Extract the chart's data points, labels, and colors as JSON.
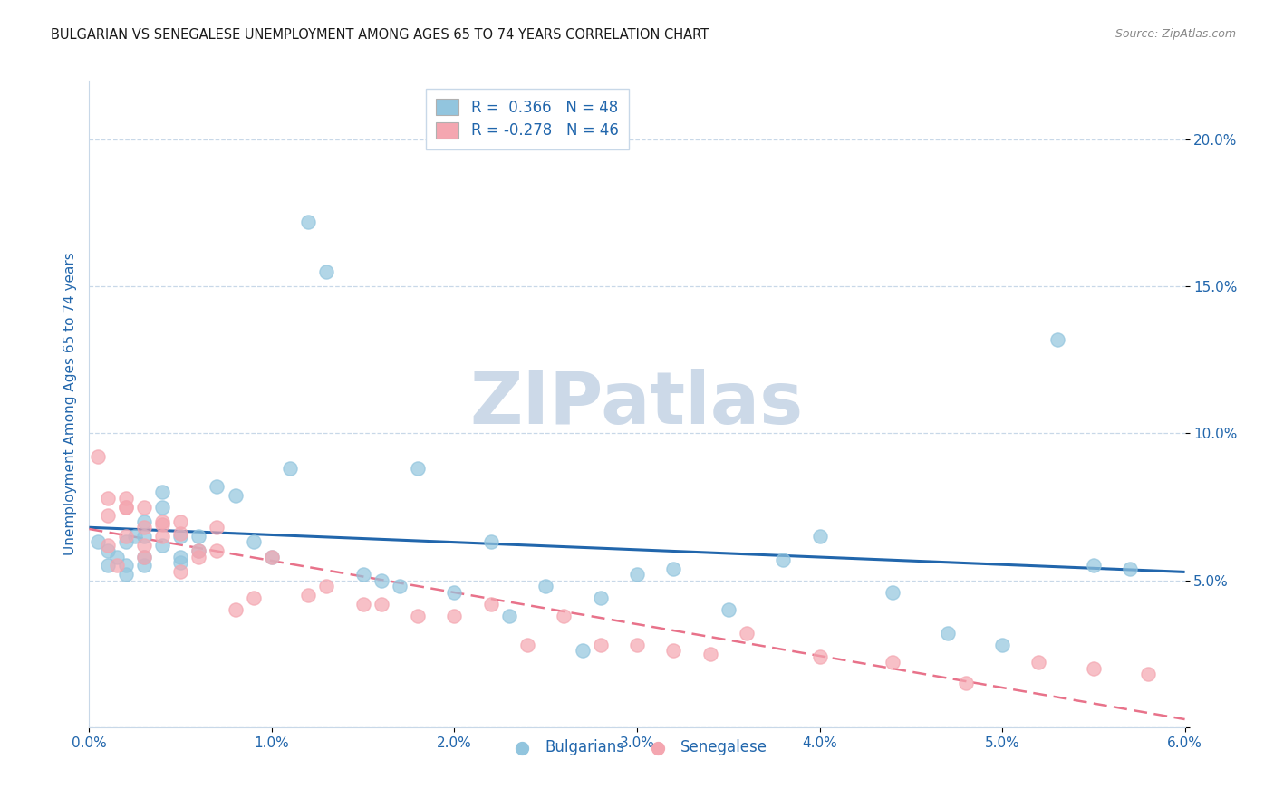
{
  "title": "BULGARIAN VS SENEGALESE UNEMPLOYMENT AMONG AGES 65 TO 74 YEARS CORRELATION CHART",
  "source": "Source: ZipAtlas.com",
  "ylabel": "Unemployment Among Ages 65 to 74 years",
  "xlim": [
    0.0,
    0.06
  ],
  "ylim": [
    0.0,
    0.22
  ],
  "x_ticks": [
    0.0,
    0.01,
    0.02,
    0.03,
    0.04,
    0.05,
    0.06
  ],
  "x_tick_labels": [
    "0.0%",
    "1.0%",
    "2.0%",
    "3.0%",
    "4.0%",
    "5.0%",
    "6.0%"
  ],
  "y_ticks": [
    0.0,
    0.05,
    0.1,
    0.15,
    0.2
  ],
  "y_tick_labels": [
    "",
    "5.0%",
    "10.0%",
    "15.0%",
    "20.0%"
  ],
  "legend_r1": "R =  0.366   N = 48",
  "legend_r2": "R = -0.278   N = 46",
  "blue_color": "#92c5de",
  "pink_color": "#f4a6b0",
  "blue_line_color": "#2166ac",
  "pink_line_color": "#e8728a",
  "blue_line_solid": true,
  "pink_line_dashed": true,
  "bulgarians_x": [
    0.0005,
    0.001,
    0.001,
    0.0015,
    0.002,
    0.002,
    0.002,
    0.0025,
    0.003,
    0.003,
    0.003,
    0.003,
    0.004,
    0.004,
    0.004,
    0.005,
    0.005,
    0.005,
    0.006,
    0.006,
    0.007,
    0.008,
    0.009,
    0.01,
    0.011,
    0.012,
    0.013,
    0.015,
    0.016,
    0.017,
    0.018,
    0.02,
    0.022,
    0.023,
    0.025,
    0.027,
    0.028,
    0.03,
    0.032,
    0.035,
    0.038,
    0.04,
    0.044,
    0.047,
    0.05,
    0.053,
    0.055,
    0.057
  ],
  "bulgarians_y": [
    0.063,
    0.055,
    0.06,
    0.058,
    0.052,
    0.055,
    0.063,
    0.065,
    0.055,
    0.058,
    0.065,
    0.07,
    0.062,
    0.075,
    0.08,
    0.056,
    0.065,
    0.058,
    0.06,
    0.065,
    0.082,
    0.079,
    0.063,
    0.058,
    0.088,
    0.172,
    0.155,
    0.052,
    0.05,
    0.048,
    0.088,
    0.046,
    0.063,
    0.038,
    0.048,
    0.026,
    0.044,
    0.052,
    0.054,
    0.04,
    0.057,
    0.065,
    0.046,
    0.032,
    0.028,
    0.132,
    0.055,
    0.054
  ],
  "senegalese_x": [
    0.0005,
    0.001,
    0.001,
    0.001,
    0.0015,
    0.002,
    0.002,
    0.002,
    0.002,
    0.003,
    0.003,
    0.003,
    0.003,
    0.004,
    0.004,
    0.004,
    0.005,
    0.005,
    0.005,
    0.006,
    0.006,
    0.007,
    0.007,
    0.008,
    0.009,
    0.01,
    0.012,
    0.013,
    0.015,
    0.016,
    0.018,
    0.02,
    0.022,
    0.024,
    0.026,
    0.028,
    0.03,
    0.032,
    0.034,
    0.036,
    0.04,
    0.044,
    0.048,
    0.052,
    0.055,
    0.058
  ],
  "senegalese_y": [
    0.092,
    0.072,
    0.078,
    0.062,
    0.055,
    0.075,
    0.078,
    0.075,
    0.065,
    0.075,
    0.068,
    0.062,
    0.058,
    0.07,
    0.069,
    0.065,
    0.066,
    0.07,
    0.053,
    0.06,
    0.058,
    0.06,
    0.068,
    0.04,
    0.044,
    0.058,
    0.045,
    0.048,
    0.042,
    0.042,
    0.038,
    0.038,
    0.042,
    0.028,
    0.038,
    0.028,
    0.028,
    0.026,
    0.025,
    0.032,
    0.024,
    0.022,
    0.015,
    0.022,
    0.02,
    0.018
  ],
  "background_color": "#ffffff",
  "watermark_text": "ZIPatlas",
  "watermark_color": "#ccd9e8",
  "title_fontsize": 10.5,
  "tick_fontsize": 11,
  "ylabel_fontsize": 11,
  "tick_color": "#2166ac",
  "grid_color": "#c8d8e8",
  "spine_color": "#c8d8e8"
}
